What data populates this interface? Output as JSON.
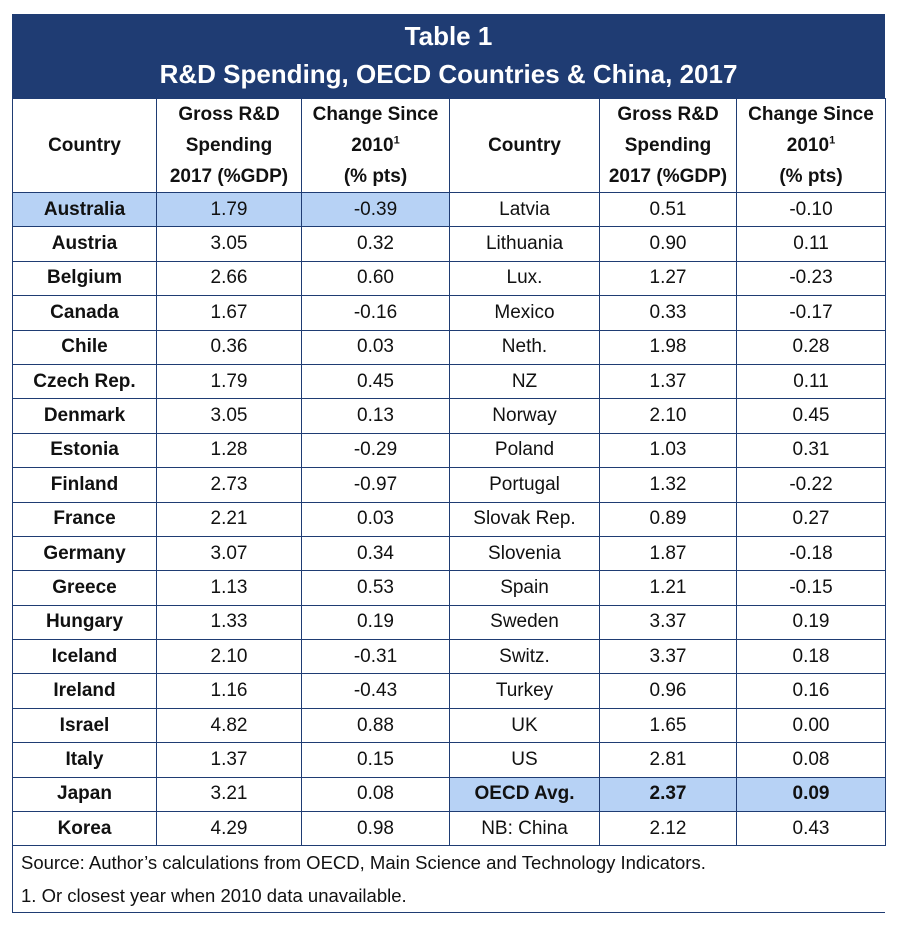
{
  "title": "Table 1",
  "subtitle": "R&D Spending, OECD Countries & China, 2017",
  "headers": {
    "country": "Country",
    "gross_l1": "Gross R&D",
    "gross_l2": "Spending",
    "gross_l3": "2017 (%GDP)",
    "change_l1": "Change Since",
    "change_l2": "2010",
    "change_sup": "1",
    "change_l3": "(% pts)"
  },
  "rows": [
    {
      "c1": "Australia",
      "g1": "1.79",
      "ch1": "-0.39",
      "c2": "Latvia",
      "g2": "0.51",
      "ch2": "-0.10"
    },
    {
      "c1": "Austria",
      "g1": "3.05",
      "ch1": "0.32",
      "c2": "Lithuania",
      "g2": "0.90",
      "ch2": "0.11"
    },
    {
      "c1": "Belgium",
      "g1": "2.66",
      "ch1": "0.60",
      "c2": "Lux.",
      "g2": "1.27",
      "ch2": "-0.23"
    },
    {
      "c1": "Canada",
      "g1": "1.67",
      "ch1": "-0.16",
      "c2": "Mexico",
      "g2": "0.33",
      "ch2": "-0.17"
    },
    {
      "c1": "Chile",
      "g1": "0.36",
      "ch1": "0.03",
      "c2": "Neth.",
      "g2": "1.98",
      "ch2": "0.28"
    },
    {
      "c1": "Czech Rep.",
      "g1": "1.79",
      "ch1": "0.45",
      "c2": "NZ",
      "g2": "1.37",
      "ch2": "0.11"
    },
    {
      "c1": "Denmark",
      "g1": "3.05",
      "ch1": "0.13",
      "c2": "Norway",
      "g2": "2.10",
      "ch2": "0.45"
    },
    {
      "c1": "Estonia",
      "g1": "1.28",
      "ch1": "-0.29",
      "c2": "Poland",
      "g2": "1.03",
      "ch2": "0.31"
    },
    {
      "c1": "Finland",
      "g1": "2.73",
      "ch1": "-0.97",
      "c2": "Portugal",
      "g2": "1.32",
      "ch2": "-0.22"
    },
    {
      "c1": "France",
      "g1": "2.21",
      "ch1": "0.03",
      "c2": "Slovak Rep.",
      "g2": "0.89",
      "ch2": "0.27"
    },
    {
      "c1": "Germany",
      "g1": "3.07",
      "ch1": "0.34",
      "c2": "Slovenia",
      "g2": "1.87",
      "ch2": "-0.18"
    },
    {
      "c1": "Greece",
      "g1": "1.13",
      "ch1": "0.53",
      "c2": "Spain",
      "g2": "1.21",
      "ch2": "-0.15"
    },
    {
      "c1": "Hungary",
      "g1": "1.33",
      "ch1": "0.19",
      "c2": "Sweden",
      "g2": "3.37",
      "ch2": "0.19"
    },
    {
      "c1": "Iceland",
      "g1": "2.10",
      "ch1": "-0.31",
      "c2": "Switz.",
      "g2": "3.37",
      "ch2": "0.18"
    },
    {
      "c1": "Ireland",
      "g1": "1.16",
      "ch1": "-0.43",
      "c2": "Turkey",
      "g2": "0.96",
      "ch2": "0.16"
    },
    {
      "c1": "Israel",
      "g1": "4.82",
      "ch1": "0.88",
      "c2": "UK",
      "g2": "1.65",
      "ch2": "0.00"
    },
    {
      "c1": "Italy",
      "g1": "1.37",
      "ch1": "0.15",
      "c2": "US",
      "g2": "2.81",
      "ch2": "0.08"
    },
    {
      "c1": "Japan",
      "g1": "3.21",
      "ch1": "0.08",
      "c2": "OECD Avg.",
      "g2": "2.37",
      "ch2": "0.09"
    },
    {
      "c1": "Korea",
      "g1": "4.29",
      "ch1": "0.98",
      "c2": "NB: China",
      "g2": "2.12",
      "ch2": "0.43"
    }
  ],
  "highlight_color": "#b7d2f5",
  "header_color": "#1f3c73",
  "source_note": "Source: Author’s calculations from OECD, Main Science and Technology Indicators.",
  "footnote": "1. Or closest year when 2010 data unavailable."
}
